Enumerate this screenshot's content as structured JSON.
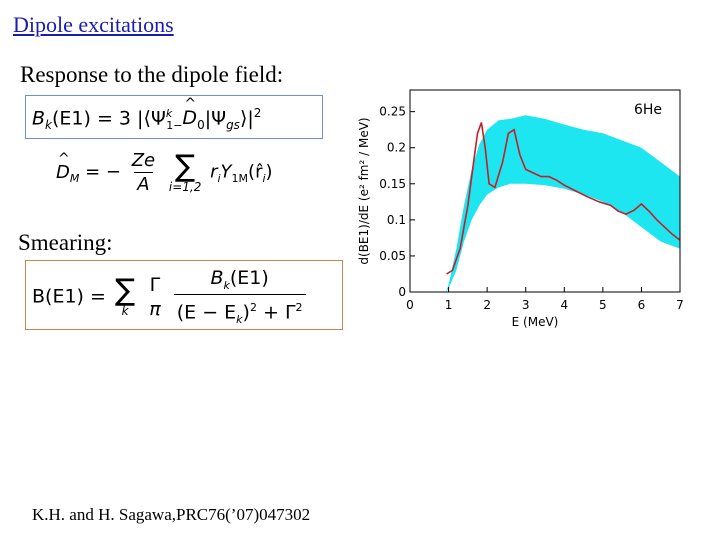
{
  "slide": {
    "title": "Dipole excitations",
    "response_label": "Response to the dipole field:",
    "smearing_label": "Smearing:",
    "citation": "K.H. and H. Sagawa,PRC76(’07)047302"
  },
  "eq1": {
    "lhs": "B",
    "lhs_sub": "k",
    "arg": "(E1) = 3 |⟨Ψ",
    "psi_sup": "k",
    "psi_sub": "1−",
    "op": "D",
    "op_sub": "0",
    "rest": "|Ψ",
    "gs_sub": "gs",
    "close": "⟩|",
    "power": "2"
  },
  "eq2": {
    "lhs": "D",
    "lhs_sub": "M",
    "eq": " = −",
    "num": "Ze",
    "den": "A",
    "sum_sub": "i=1,2",
    "term_r": "r",
    "term_r_sub": "i",
    "term_y": "Y",
    "term_y_sub": "1M",
    "term_arg": "(r̂",
    "term_arg_sub": "i",
    "term_close": ")"
  },
  "eq3": {
    "lhs": "B(E1) =",
    "sum_sub": "k",
    "gamma": "Γ",
    "pi": "π",
    "num_b": "B",
    "num_sub": "k",
    "num_rest": "(E1)",
    "den_left": "(E − E",
    "den_sub": "k",
    "den_right": ")",
    "den_pow": "2",
    "den_plus": " + Γ",
    "den_pow2": "2"
  },
  "chart_data": {
    "type": "line",
    "title": "",
    "annotation": "6He",
    "xlabel": "E (MeV)",
    "ylabel": "d(BE1)/dE (e² fm² / MeV)",
    "xlim": [
      0,
      7
    ],
    "ylim": [
      0,
      0.28
    ],
    "xticks": [
      "0",
      "1",
      "2",
      "3",
      "4",
      "5",
      "6",
      "7"
    ],
    "yticks": [
      "0",
      "0.05",
      "0.1",
      "0.15",
      "0.2",
      "0.25"
    ],
    "grid": false,
    "colors": {
      "band": "#1ee6f0",
      "line": "#c0202a",
      "axis": "#000000"
    },
    "band": {
      "x": [
        0.93,
        1.0,
        1.2,
        1.4,
        1.6,
        1.8,
        2.0,
        2.3,
        2.6,
        3.0,
        3.5,
        4.0,
        4.5,
        5.0,
        5.5,
        6.0,
        6.5,
        7.0
      ],
      "upper": [
        0.0,
        0.01,
        0.06,
        0.12,
        0.17,
        0.205,
        0.225,
        0.238,
        0.24,
        0.245,
        0.24,
        0.232,
        0.225,
        0.22,
        0.21,
        0.2,
        0.18,
        0.16
      ],
      "lower": [
        0.0,
        0.005,
        0.03,
        0.07,
        0.1,
        0.12,
        0.135,
        0.145,
        0.15,
        0.15,
        0.148,
        0.143,
        0.135,
        0.125,
        0.11,
        0.09,
        0.07,
        0.06
      ]
    },
    "series": [
      {
        "x": [
          0.95,
          1.1,
          1.3,
          1.5,
          1.65,
          1.75,
          1.85,
          1.95,
          2.05,
          2.2,
          2.4,
          2.55,
          2.7,
          2.85,
          3.0,
          3.2,
          3.4,
          3.6,
          3.8,
          4.0,
          4.3,
          4.6,
          4.9,
          5.2,
          5.4,
          5.6,
          5.8,
          6.0,
          6.2,
          6.4,
          6.6,
          6.8,
          7.0
        ],
        "y": [
          0.025,
          0.03,
          0.06,
          0.12,
          0.18,
          0.22,
          0.235,
          0.2,
          0.15,
          0.145,
          0.18,
          0.22,
          0.225,
          0.19,
          0.17,
          0.165,
          0.16,
          0.16,
          0.155,
          0.148,
          0.14,
          0.132,
          0.125,
          0.12,
          0.112,
          0.108,
          0.113,
          0.122,
          0.112,
          0.1,
          0.09,
          0.08,
          0.072
        ]
      }
    ]
  }
}
